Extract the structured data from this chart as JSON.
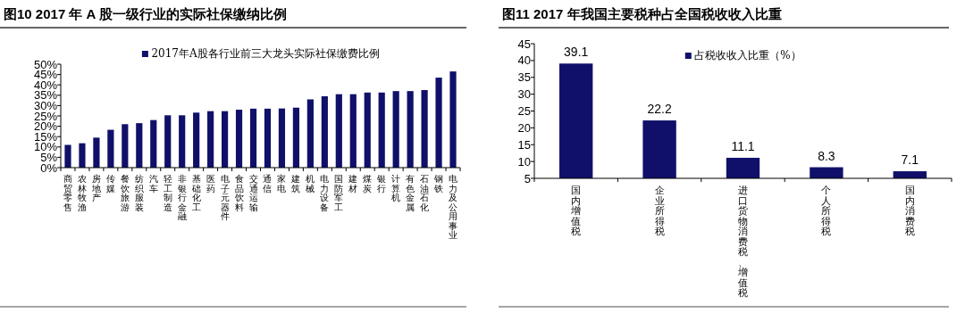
{
  "chart_data": [
    {
      "type": "bar",
      "title": "图10 2017 年 A 股一级行业的实际社保缴纳比例",
      "categories": [
        "商贸零售",
        "农林牧渔",
        "房地产",
        "传媒",
        "餐饮旅游",
        "纺织服装",
        "汽车",
        "轻工制造",
        "非银行金融",
        "基础化工",
        "医药",
        "电子元器件",
        "食品饮料",
        "交通运输",
        "通信",
        "家电",
        "建筑",
        "机械",
        "电力设备",
        "国防军工",
        "建材",
        "煤炭",
        "银行",
        "计算机",
        "有色金属",
        "石油石化",
        "钢铁",
        "电力及公用事业"
      ],
      "series": [
        {
          "name": "2017年A股各行业前三大龙头实际社保缴费比例",
          "color": "#10106a",
          "values": [
            11,
            11.8,
            14.5,
            18.3,
            21,
            21.5,
            23,
            25.3,
            25.3,
            26.6,
            27.3,
            27.3,
            28,
            28.5,
            28.5,
            28.6,
            29,
            33,
            34.5,
            35.5,
            35.5,
            36.3,
            36.3,
            37,
            37,
            37.5,
            43.5,
            46.5
          ]
        }
      ],
      "ylim": [
        0,
        50
      ],
      "yticks": [
        {
          "value": 0,
          "label": "0%"
        },
        {
          "value": 5,
          "label": "5%"
        },
        {
          "value": 10,
          "label": "10%"
        },
        {
          "value": 15,
          "label": "15%"
        },
        {
          "value": 20,
          "label": "20%"
        },
        {
          "value": 25,
          "label": "25%"
        },
        {
          "value": 30,
          "label": "30%"
        },
        {
          "value": 35,
          "label": "35%"
        },
        {
          "value": 40,
          "label": "40%"
        },
        {
          "value": 45,
          "label": "45%"
        },
        {
          "value": 50,
          "label": "50%"
        }
      ],
      "legend": "top"
    },
    {
      "type": "bar",
      "title": "图11 2017 年我国主要税种占全国税收收入比重",
      "categories": [
        "国内增值税",
        "企业所得税",
        "进口货物消费税、增值税",
        "个人所得税",
        "国内消费税"
      ],
      "series": [
        {
          "name": "占税收收入比重（%）",
          "color": "#10106a",
          "values": [
            39.1,
            22.2,
            11.1,
            8.3,
            7.1
          ]
        }
      ],
      "ylim": [
        5,
        45
      ],
      "yticks": [
        5,
        10,
        15,
        20,
        25,
        30,
        35,
        40,
        45
      ],
      "data_labels": true,
      "legend": "top"
    }
  ]
}
